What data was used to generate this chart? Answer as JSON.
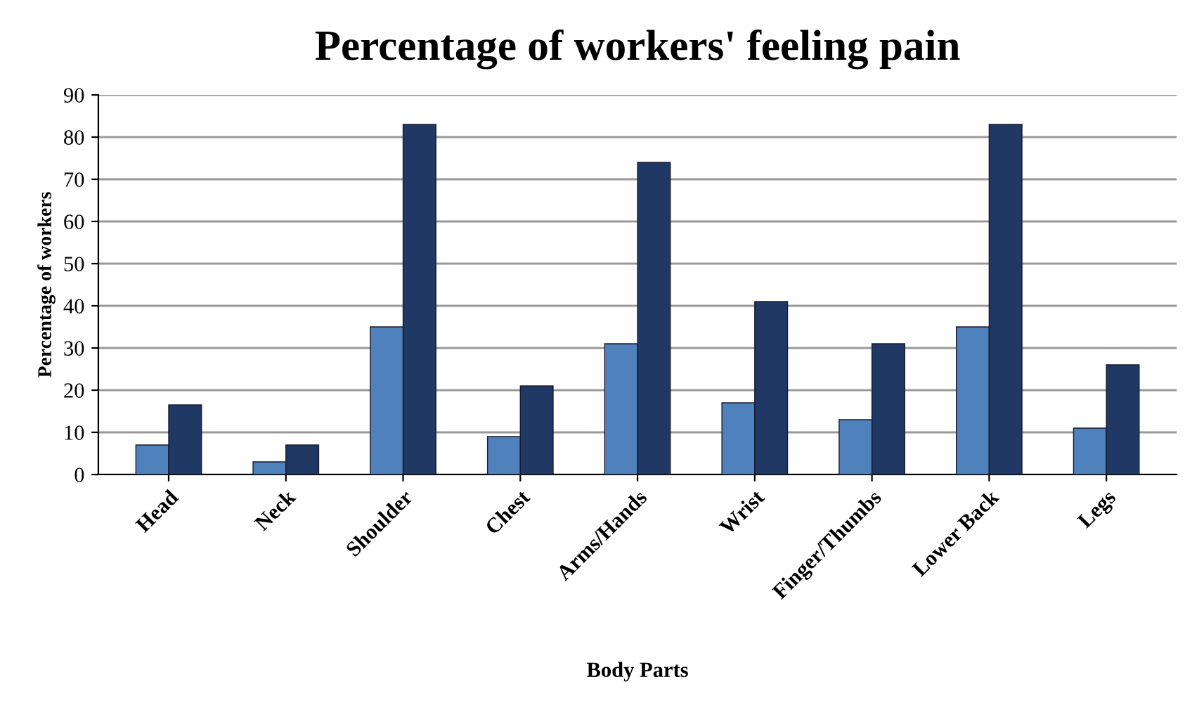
{
  "chart_data": {
    "type": "bar",
    "title": "Percentage of workers' feeling pain",
    "xlabel": "Body Parts",
    "ylabel": "Percentage of workers",
    "categories": [
      "Head",
      "Neck",
      "Shoulder",
      "Chest",
      "Arms/Hands",
      "Wrist",
      "Finger/Thumbs",
      "Lower Back",
      "Legs"
    ],
    "series": [
      {
        "color": "#4f81bd",
        "values": [
          7,
          3,
          35,
          9,
          31,
          17,
          13,
          35,
          11
        ]
      },
      {
        "color": "#1f3864",
        "values": [
          16.5,
          7,
          83,
          21,
          74,
          41,
          31,
          83,
          26
        ]
      }
    ],
    "ylim": [
      0,
      90
    ],
    "yticks": [
      0,
      10,
      20,
      30,
      40,
      50,
      60,
      70,
      80,
      90
    ],
    "grid": "y",
    "legend": false
  }
}
